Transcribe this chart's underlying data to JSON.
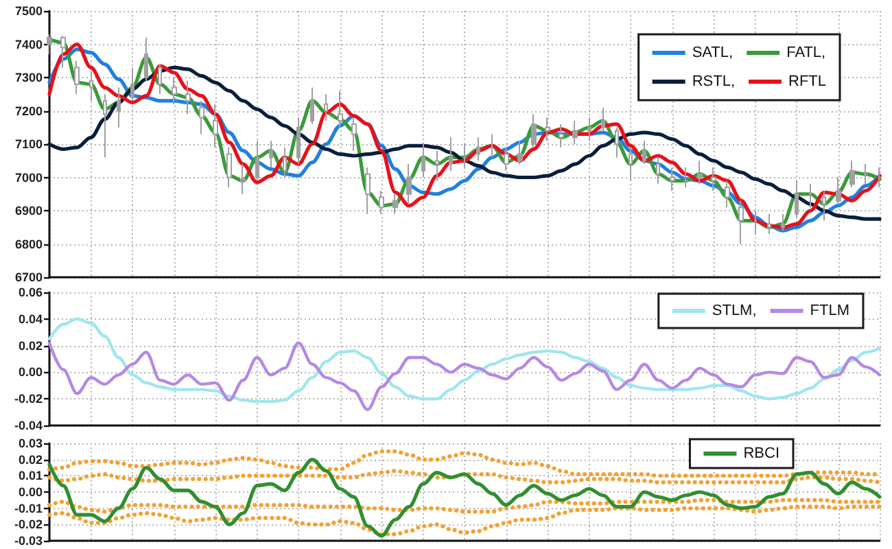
{
  "chart_data": [
    {
      "type": "line",
      "categories": [
        null,
        null,
        null,
        null,
        null,
        null,
        null,
        null,
        null,
        null,
        null,
        null,
        null,
        null,
        null,
        null,
        null,
        null,
        null,
        null,
        null,
        null,
        null,
        null,
        null,
        null,
        null,
        null,
        null,
        null,
        null,
        null,
        null,
        null,
        null,
        null,
        null,
        null,
        null,
        null,
        null,
        null,
        null,
        null,
        null,
        null,
        null,
        null,
        null,
        null,
        null,
        null,
        null,
        null,
        null,
        null,
        null,
        null,
        null,
        null,
        null
      ],
      "series": [
        {
          "type": "candlestick",
          "color": "#a0a0a0",
          "ohlc": [
            [
              7400,
              7430,
              7370,
              7420
            ],
            [
              7420,
              7425,
              7330,
              7390
            ],
            [
              7330,
              7350,
              7250,
              7280
            ],
            [
              7290,
              7320,
              7230,
              7270
            ],
            [
              7230,
              7250,
              7060,
              7190
            ],
            [
              7200,
              7270,
              7150,
              7230
            ],
            [
              7240,
              7330,
              7230,
              7280
            ],
            [
              7300,
              7420,
              7290,
              7370
            ],
            [
              7330,
              7340,
              7250,
              7280
            ],
            [
              7270,
              7300,
              7220,
              7250
            ],
            [
              7250,
              7290,
              7190,
              7230
            ],
            [
              7210,
              7230,
              7130,
              7180
            ],
            [
              7170,
              7220,
              7090,
              7130
            ],
            [
              7070,
              7090,
              6970,
              7000
            ],
            [
              6990,
              7040,
              6950,
              6995
            ],
            [
              7000,
              7110,
              6990,
              7060
            ],
            [
              7060,
              7110,
              7030,
              7080
            ],
            [
              7060,
              7090,
              7000,
              7020
            ],
            [
              7060,
              7180,
              7040,
              7150
            ],
            [
              7170,
              7270,
              7160,
              7230
            ],
            [
              7220,
              7250,
              7170,
              7200
            ],
            [
              7190,
              7260,
              7150,
              7170
            ],
            [
              7160,
              7180,
              7080,
              7130
            ],
            [
              7010,
              7030,
              6890,
              6950
            ],
            [
              6940,
              6960,
              6890,
              6910
            ],
            [
              6910,
              6950,
              6890,
              6930
            ],
            [
              6950,
              7040,
              6920,
              7000
            ],
            [
              7020,
              7100,
              7000,
              7060
            ],
            [
              7050,
              7080,
              6990,
              7040
            ],
            [
              7040,
              7120,
              7020,
              7060
            ],
            [
              7060,
              7100,
              7030,
              7060
            ],
            [
              7070,
              7120,
              7050,
              7090
            ],
            [
              7090,
              7130,
              7060,
              7090
            ],
            [
              7070,
              7090,
              7020,
              7040
            ],
            [
              7050,
              7110,
              7040,
              7070
            ],
            [
              7100,
              7190,
              7090,
              7160
            ],
            [
              7150,
              7180,
              7110,
              7140
            ],
            [
              7130,
              7160,
              7090,
              7120
            ],
            [
              7120,
              7170,
              7100,
              7140
            ],
            [
              7140,
              7180,
              7110,
              7150
            ],
            [
              7150,
              7210,
              7140,
              7170
            ],
            [
              7140,
              7150,
              7060,
              7100
            ],
            [
              7070,
              7090,
              6990,
              7040
            ],
            [
              7050,
              7110,
              7040,
              7080
            ],
            [
              7040,
              7060,
              6980,
              7010
            ],
            [
              7000,
              7030,
              6960,
              6990
            ],
            [
              6990,
              7030,
              6970,
              6990
            ],
            [
              7000,
              7050,
              6980,
              7010
            ],
            [
              7000,
              7030,
              6960,
              6990
            ],
            [
              6970,
              6990,
              6910,
              6940
            ],
            [
              6910,
              6930,
              6800,
              6870
            ],
            [
              6870,
              6900,
              6830,
              6870
            ],
            [
              6860,
              6890,
              6830,
              6850
            ],
            [
              6850,
              6890,
              6840,
              6860
            ],
            [
              6890,
              6990,
              6880,
              6950
            ],
            [
              6950,
              6980,
              6910,
              6950
            ],
            [
              6940,
              6960,
              6870,
              6920
            ],
            [
              6930,
              7000,
              6920,
              6960
            ],
            [
              6980,
              7050,
              6970,
              7020
            ],
            [
              7010,
              7040,
              6980,
              7010
            ],
            [
              7000,
              7030,
              6970,
              7000
            ]
          ]
        },
        {
          "name": "SATL,",
          "color": "#2080e0",
          "values": [
            7285,
            7355,
            7385,
            7375,
            7340,
            7295,
            7245,
            7240,
            7230,
            7230,
            7225,
            7220,
            7190,
            7135,
            7080,
            7045,
            7025,
            7010,
            7005,
            7045,
            7100,
            7155,
            7185,
            7160,
            7095,
            7025,
            6975,
            6955,
            6950,
            6965,
            6990,
            7025,
            7060,
            7085,
            7105,
            7130,
            7135,
            7130,
            7130,
            7130,
            7135,
            7120,
            7080,
            7050,
            7040,
            7015,
            6995,
            6990,
            6975,
            6955,
            6920,
            6880,
            6855,
            6840,
            6850,
            6870,
            6895,
            6915,
            6940,
            6975,
            7005
          ]
        },
        {
          "name": "FATL,",
          "color": "#3a9a3a",
          "values": [
            7415,
            7405,
            7285,
            7280,
            7205,
            7225,
            7270,
            7360,
            7280,
            7250,
            7240,
            7185,
            7135,
            7005,
            6990,
            7060,
            7080,
            7015,
            7140,
            7230,
            7195,
            7175,
            7140,
            6955,
            6915,
            6920,
            6995,
            7060,
            7040,
            7060,
            7060,
            7085,
            7095,
            7045,
            7065,
            7155,
            7140,
            7120,
            7135,
            7150,
            7170,
            7105,
            7040,
            7080,
            7010,
            6990,
            6990,
            7010,
            6990,
            6940,
            6870,
            6870,
            6850,
            6860,
            6950,
            6950,
            6920,
            6955,
            7015,
            7010,
            6995
          ]
        },
        {
          "name": "RSTL,",
          "color": "#0a1e3c",
          "values": [
            7100,
            7085,
            7090,
            7120,
            7175,
            7225,
            7265,
            7295,
            7320,
            7330,
            7325,
            7305,
            7285,
            7260,
            7230,
            7205,
            7180,
            7155,
            7130,
            7105,
            7085,
            7070,
            7065,
            7070,
            7075,
            7085,
            7095,
            7095,
            7090,
            7075,
            7050,
            7035,
            7015,
            7005,
            7000,
            7000,
            7005,
            7020,
            7040,
            7065,
            7095,
            7115,
            7130,
            7135,
            7130,
            7115,
            7095,
            7070,
            7050,
            7030,
            7015,
            6995,
            6980,
            6960,
            6940,
            6920,
            6900,
            6885,
            6880,
            6875,
            6875
          ]
        },
        {
          "name": "RFTL",
          "color": "#e8101a",
          "values": [
            7250,
            7370,
            7400,
            7330,
            7270,
            7245,
            7225,
            7245,
            7335,
            7315,
            7265,
            7245,
            7190,
            7105,
            7040,
            6985,
            7005,
            7060,
            7040,
            7100,
            7195,
            7220,
            7185,
            7160,
            7080,
            6955,
            6915,
            6940,
            7005,
            7045,
            7050,
            7080,
            7095,
            7070,
            7050,
            7085,
            7135,
            7145,
            7130,
            7130,
            7155,
            7160,
            7095,
            7050,
            7065,
            7045,
            7010,
            6990,
            7005,
            6990,
            6930,
            6870,
            6855,
            6850,
            6860,
            6900,
            6955,
            6950,
            6930,
            6960,
            7005
          ]
        }
      ],
      "ylim": [
        6700,
        7500
      ],
      "yticks": [
        6700,
        6800,
        6900,
        7000,
        7100,
        7200,
        7300,
        7400,
        7500
      ],
      "grid": true,
      "legend": "top right",
      "tick_labels": "y",
      "marker": "none"
    },
    {
      "type": "line",
      "categories": [
        null,
        null,
        null,
        null,
        null,
        null,
        null,
        null,
        null,
        null,
        null,
        null,
        null,
        null,
        null,
        null,
        null,
        null,
        null,
        null,
        null,
        null,
        null,
        null,
        null,
        null,
        null,
        null,
        null,
        null,
        null,
        null,
        null,
        null,
        null,
        null,
        null,
        null,
        null,
        null,
        null,
        null,
        null,
        null,
        null,
        null,
        null,
        null,
        null,
        null,
        null,
        null,
        null,
        null,
        null,
        null,
        null,
        null,
        null,
        null,
        null
      ],
      "series": [
        {
          "name": "STLM,",
          "color": "#9fe6ee",
          "values": [
            0.025,
            0.036,
            0.04,
            0.037,
            0.027,
            0.011,
            -0.002,
            -0.008,
            -0.011,
            -0.013,
            -0.013,
            -0.013,
            -0.014,
            -0.018,
            -0.021,
            -0.022,
            -0.022,
            -0.021,
            -0.014,
            -0.004,
            0.008,
            0.015,
            0.016,
            0.011,
            -0.001,
            -0.011,
            -0.018,
            -0.02,
            -0.02,
            -0.013,
            -0.006,
            0.001,
            0.006,
            0.01,
            0.013,
            0.015,
            0.016,
            0.015,
            0.011,
            0.008,
            0.003,
            -0.004,
            -0.01,
            -0.012,
            -0.013,
            -0.013,
            -0.013,
            -0.012,
            -0.01,
            -0.01,
            -0.014,
            -0.018,
            -0.02,
            -0.019,
            -0.016,
            -0.012,
            -0.005,
            0.002,
            0.009,
            0.015,
            0.018
          ]
        },
        {
          "name": "FTLM",
          "color": "#b488e6",
          "values": [
            0.022,
            0.002,
            -0.016,
            -0.004,
            -0.009,
            -0.002,
            0.006,
            0.015,
            -0.006,
            -0.009,
            -0.002,
            -0.009,
            -0.008,
            -0.021,
            -0.006,
            0.011,
            -0.002,
            0.003,
            0.022,
            0.006,
            -0.004,
            -0.008,
            -0.014,
            -0.028,
            -0.011,
            -0.001,
            0.011,
            0.011,
            0.006,
            0.0,
            0.006,
            0.003,
            -0.002,
            -0.005,
            0.003,
            0.011,
            0.004,
            -0.006,
            -0.001,
            0.006,
            0.001,
            -0.013,
            -0.006,
            0.006,
            -0.006,
            -0.012,
            -0.006,
            0.003,
            -0.002,
            -0.009,
            -0.011,
            -0.002,
            0.0,
            -0.001,
            0.011,
            0.008,
            -0.004,
            -0.002,
            0.011,
            0.004,
            -0.002
          ]
        }
      ],
      "ylim": [
        -0.04,
        0.06
      ],
      "yticks": [
        -0.04,
        -0.02,
        {
          "value": 0,
          "label": "0.00"
        },
        0.02,
        0.04,
        0.06
      ],
      "grid": true,
      "legend": "top right",
      "tick_labels": "y",
      "marker": "none"
    },
    {
      "type": "line",
      "categories": [
        null,
        null,
        null,
        null,
        null,
        null,
        null,
        null,
        null,
        null,
        null,
        null,
        null,
        null,
        null,
        null,
        null,
        null,
        null,
        null,
        null,
        null,
        null,
        null,
        null,
        null,
        null,
        null,
        null,
        null,
        null,
        null,
        null,
        null,
        null,
        null,
        null,
        null,
        null,
        null,
        null,
        null,
        null,
        null,
        null,
        null,
        null,
        null,
        null,
        null,
        null,
        null,
        null,
        null,
        null,
        null,
        null,
        null,
        null,
        null,
        null
      ],
      "series": [
        {
          "color": "#f5a030",
          "line_style": "dotted",
          "values": [
            0.014,
            0.015,
            0.018,
            0.019,
            0.019,
            0.018,
            0.016,
            0.016,
            0.017,
            0.018,
            0.018,
            0.017,
            0.018,
            0.02,
            0.021,
            0.02,
            0.018,
            0.016,
            0.015,
            0.015,
            0.014,
            0.014,
            0.018,
            0.023,
            0.025,
            0.025,
            0.023,
            0.02,
            0.02,
            0.022,
            0.024,
            0.023,
            0.02,
            0.018,
            0.017,
            0.018,
            0.016,
            0.013,
            0.011,
            0.011,
            0.011,
            0.011,
            0.011,
            0.011,
            0.01,
            0.01,
            0.01,
            0.01,
            0.01,
            0.01,
            0.01,
            0.01,
            0.01,
            0.01,
            0.011,
            0.012,
            0.012,
            0.012,
            0.012,
            0.011,
            0.011
          ]
        },
        {
          "color": "#f5a030",
          "line_style": "dotted",
          "values": [
            0.009,
            0.007,
            0.008,
            0.01,
            0.011,
            0.009,
            0.008,
            0.007,
            0.007,
            0.008,
            0.008,
            0.008,
            0.008,
            0.009,
            0.01,
            0.01,
            0.01,
            0.01,
            0.01,
            0.01,
            0.01,
            0.009,
            0.009,
            0.011,
            0.012,
            0.013,
            0.012,
            0.011,
            0.009,
            0.009,
            0.011,
            0.011,
            0.011,
            0.009,
            0.008,
            0.007,
            0.006,
            0.006,
            0.007,
            0.008,
            0.008,
            0.008,
            0.007,
            0.007,
            0.006,
            0.006,
            0.006,
            0.006,
            0.006,
            0.006,
            0.006,
            0.006,
            0.006,
            0.006,
            0.008,
            0.009,
            0.009,
            0.008,
            0.008,
            0.007,
            0.006
          ]
        },
        {
          "color": "#f5a030",
          "line_style": "dotted",
          "values": [
            -0.008,
            -0.006,
            -0.009,
            -0.011,
            -0.012,
            -0.01,
            -0.008,
            -0.008,
            -0.008,
            -0.009,
            -0.009,
            -0.009,
            -0.009,
            -0.009,
            -0.009,
            -0.008,
            -0.008,
            -0.008,
            -0.008,
            -0.009,
            -0.009,
            -0.009,
            -0.009,
            -0.01,
            -0.01,
            -0.011,
            -0.011,
            -0.01,
            -0.01,
            -0.011,
            -0.012,
            -0.012,
            -0.012,
            -0.01,
            -0.009,
            -0.008,
            -0.006,
            -0.006,
            -0.007,
            -0.007,
            -0.007,
            -0.006,
            -0.006,
            -0.006,
            -0.006,
            -0.006,
            -0.006,
            -0.005,
            -0.005,
            -0.006,
            -0.006,
            -0.006,
            -0.006,
            -0.005,
            -0.005,
            -0.005,
            -0.005,
            -0.006,
            -0.006,
            -0.006,
            -0.006
          ]
        },
        {
          "color": "#f5a030",
          "line_style": "dotted",
          "values": [
            -0.014,
            -0.013,
            -0.016,
            -0.019,
            -0.019,
            -0.016,
            -0.014,
            -0.013,
            -0.014,
            -0.016,
            -0.018,
            -0.017,
            -0.016,
            -0.017,
            -0.017,
            -0.016,
            -0.016,
            -0.016,
            -0.019,
            -0.02,
            -0.02,
            -0.018,
            -0.019,
            -0.023,
            -0.026,
            -0.026,
            -0.024,
            -0.021,
            -0.02,
            -0.023,
            -0.025,
            -0.024,
            -0.021,
            -0.019,
            -0.017,
            -0.017,
            -0.016,
            -0.013,
            -0.011,
            -0.011,
            -0.011,
            -0.01,
            -0.01,
            -0.011,
            -0.011,
            -0.011,
            -0.01,
            -0.01,
            -0.01,
            -0.01,
            -0.011,
            -0.012,
            -0.011,
            -0.01,
            -0.009,
            -0.009,
            -0.009,
            -0.01,
            -0.009,
            -0.009,
            -0.009
          ]
        },
        {
          "name": "RBCI",
          "color": "#2f8f2f",
          "values": [
            0.017,
            0.004,
            -0.014,
            -0.014,
            -0.018,
            -0.01,
            0.002,
            0.015,
            0.008,
            0.001,
            0.001,
            -0.006,
            -0.009,
            -0.02,
            -0.013,
            0.004,
            0.005,
            0.001,
            0.012,
            0.02,
            0.013,
            0.002,
            -0.003,
            -0.021,
            -0.027,
            -0.017,
            -0.009,
            0.005,
            0.012,
            0.009,
            0.011,
            0.005,
            -0.001,
            -0.008,
            -0.002,
            0.004,
            -0.001,
            -0.005,
            -0.002,
            0.002,
            -0.002,
            -0.009,
            -0.009,
            0.0,
            -0.003,
            -0.005,
            -0.002,
            0.0,
            -0.002,
            -0.008,
            -0.01,
            -0.009,
            -0.003,
            -0.001,
            0.011,
            0.012,
            0.005,
            -0.001,
            0.006,
            0.002,
            -0.003
          ]
        }
      ],
      "ylim": [
        -0.03,
        0.03
      ],
      "yticks": [
        -0.03,
        -0.02,
        -0.01,
        {
          "value": 0,
          "label": "0.00"
        },
        0.01,
        0.02,
        0.03
      ],
      "grid": true,
      "legend": "top right",
      "tick_labels": "y",
      "marker": "none"
    }
  ]
}
